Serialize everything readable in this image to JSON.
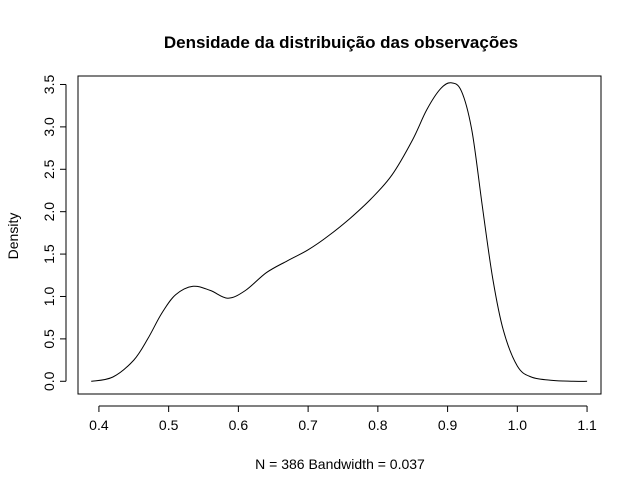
{
  "chart_data": {
    "type": "line",
    "title": "Densidade da distribuição das observações",
    "xlabel": "N = 386   Bandwidth = 0.037",
    "ylabel": "Density",
    "xlim": [
      0.37,
      1.12
    ],
    "ylim": [
      -0.15,
      3.6
    ],
    "grid": false,
    "x_ticks": [
      "0.4",
      "0.5",
      "0.6",
      "0.7",
      "0.8",
      "0.9",
      "1.0",
      "1.1"
    ],
    "y_ticks": [
      "0.0",
      "0.5",
      "1.0",
      "1.5",
      "2.0",
      "2.5",
      "3.0",
      "3.5"
    ],
    "series": [
      {
        "x": [
          0.389,
          0.42,
          0.45,
          0.47,
          0.49,
          0.51,
          0.535,
          0.56,
          0.585,
          0.61,
          0.64,
          0.67,
          0.7,
          0.73,
          0.76,
          0.79,
          0.82,
          0.85,
          0.87,
          0.89,
          0.905,
          0.92,
          0.935,
          0.95,
          0.965,
          0.98,
          1.0,
          1.02,
          1.05,
          1.08,
          1.1
        ],
        "y": [
          0.0,
          0.05,
          0.25,
          0.5,
          0.8,
          1.02,
          1.12,
          1.07,
          0.98,
          1.07,
          1.28,
          1.42,
          1.55,
          1.72,
          1.92,
          2.15,
          2.43,
          2.85,
          3.2,
          3.45,
          3.52,
          3.42,
          2.95,
          2.05,
          1.2,
          0.6,
          0.18,
          0.05,
          0.01,
          0.0,
          0.0
        ]
      }
    ]
  }
}
